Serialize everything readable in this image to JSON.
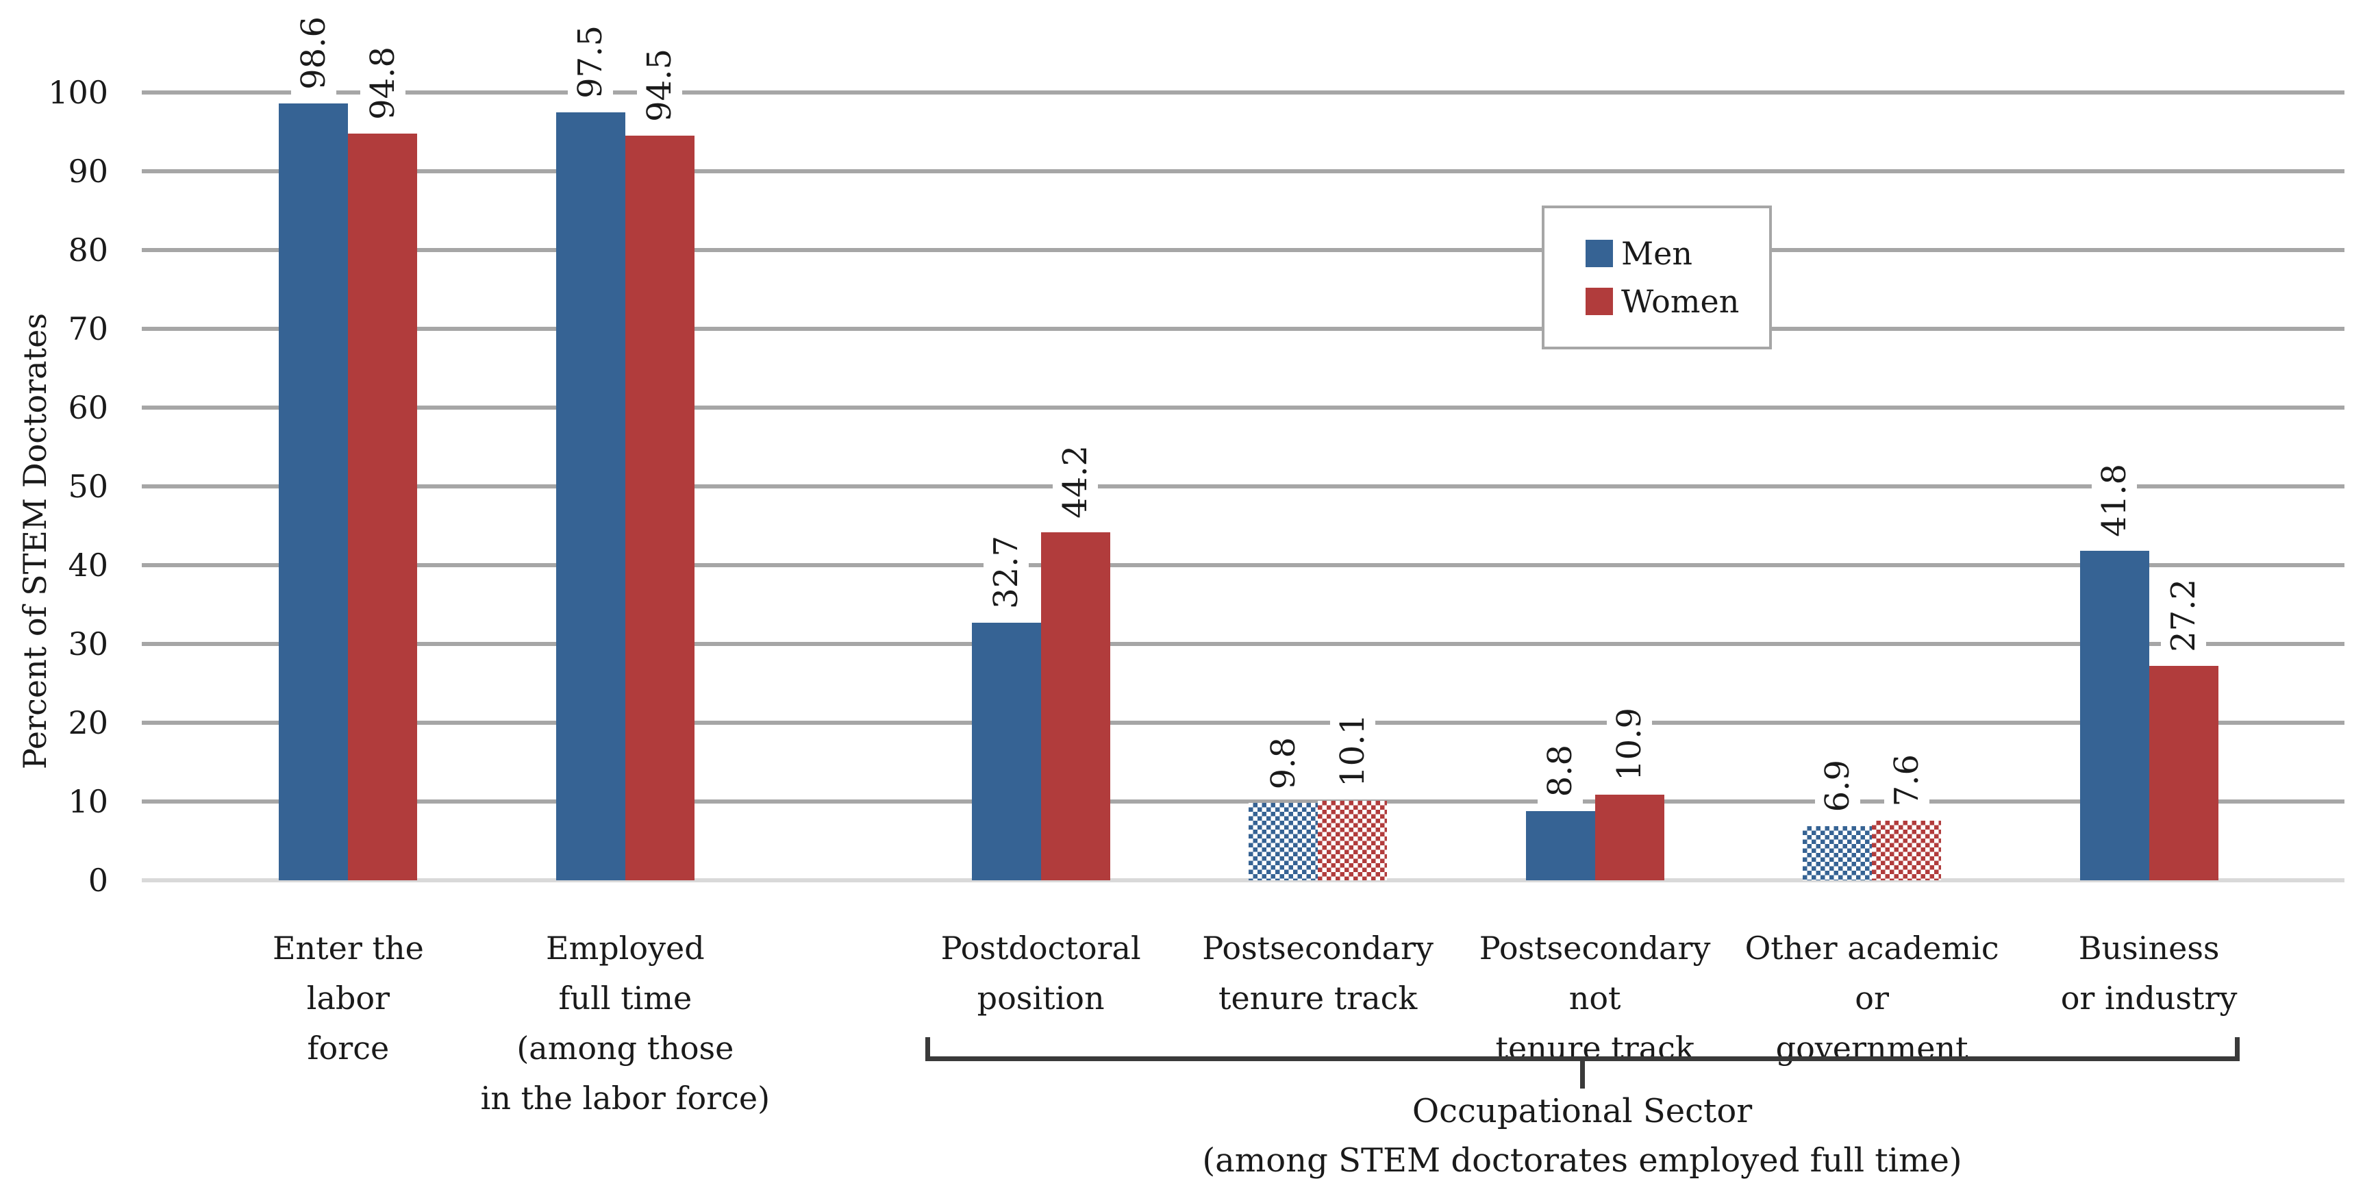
{
  "chart_data": {
    "type": "bar",
    "title": "",
    "ylabel": "Percent of STEM Doctorates",
    "xlabel": "",
    "ylim": [
      0,
      100
    ],
    "yticks": [
      0,
      10,
      20,
      30,
      40,
      50,
      60,
      70,
      80,
      90,
      100
    ],
    "grid": true,
    "legend": {
      "position": "inside-upper-right",
      "entries": [
        "Men",
        "Women"
      ]
    },
    "colors": {
      "men": "#366394",
      "women": "#B13C3C",
      "gridline": "#A6A6A6",
      "zero_line": "#D9D9D9",
      "text": "#1a1a1a",
      "bracket": "#3a3a3a",
      "legend_border": "#A6A6A6",
      "label_background": "#FFFFFF"
    },
    "series": [
      {
        "name": "Men",
        "values": [
          98.6,
          97.5,
          32.7,
          9.8,
          8.8,
          6.9,
          41.8
        ]
      },
      {
        "name": "Women",
        "values": [
          94.8,
          94.5,
          44.2,
          10.1,
          10.9,
          7.6,
          27.2
        ]
      }
    ],
    "categories": [
      {
        "lines": [
          "Enter the",
          "labor",
          "force"
        ],
        "slot": 0,
        "hatched": false
      },
      {
        "lines": [
          "Employed",
          "full time",
          "(among those",
          "in the labor force)"
        ],
        "slot": 1,
        "hatched": false
      },
      {
        "lines": [
          "Postdoctoral",
          "position"
        ],
        "slot": 2.5,
        "hatched": false
      },
      {
        "lines": [
          "Postsecondary",
          "tenure track"
        ],
        "slot": 3.5,
        "hatched": true
      },
      {
        "lines": [
          "Postsecondary",
          "not",
          "tenure track"
        ],
        "slot": 4.5,
        "hatched": false
      },
      {
        "lines": [
          "Other academic",
          "or",
          "government"
        ],
        "slot": 5.5,
        "hatched": true
      },
      {
        "lines": [
          "Business",
          "or industry"
        ],
        "slot": 6.5,
        "hatched": false
      }
    ],
    "bracket": {
      "label_lines": [
        "Occupational Sector",
        "(among STEM doctorates employed full time)"
      ],
      "from_category_index": 2,
      "to_category_index": 6
    }
  }
}
